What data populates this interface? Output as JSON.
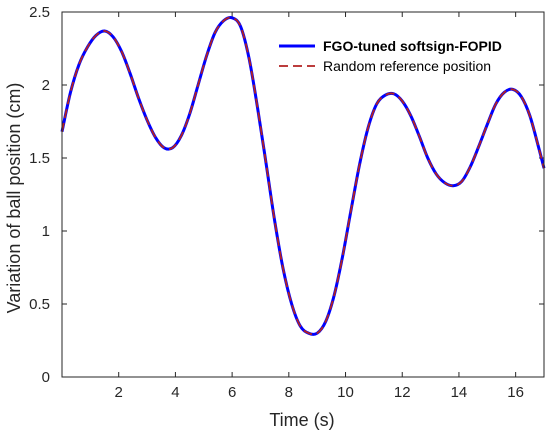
{
  "chart_data": {
    "type": "line",
    "title": "",
    "xlabel": "Time (s)",
    "ylabel": "Variation of ball position (cm)",
    "xlim": [
      0,
      17
    ],
    "ylim": [
      0,
      2.5
    ],
    "xticks": [
      2,
      4,
      6,
      8,
      10,
      12,
      14,
      16
    ],
    "yticks": [
      0,
      0.5,
      1,
      1.5,
      2,
      2.5
    ],
    "grid": false,
    "legend_position": "top-right",
    "series": [
      {
        "name": "FGO-tuned softsign-FOPID",
        "color": "#0000ff",
        "style": "solid",
        "x": [
          0,
          0.3,
          0.6,
          0.9,
          1.2,
          1.5,
          1.8,
          2.1,
          2.4,
          2.7,
          3.0,
          3.3,
          3.6,
          3.9,
          4.2,
          4.5,
          4.8,
          5.1,
          5.4,
          5.7,
          6.0,
          6.3,
          6.6,
          6.9,
          7.2,
          7.5,
          7.8,
          8.1,
          8.4,
          8.7,
          9.0,
          9.3,
          9.6,
          9.9,
          10.2,
          10.5,
          10.8,
          11.1,
          11.4,
          11.7,
          12.0,
          12.3,
          12.6,
          12.9,
          13.2,
          13.5,
          13.8,
          14.1,
          14.4,
          14.7,
          15.0,
          15.3,
          15.6,
          15.9,
          16.2,
          16.5,
          16.8,
          17.0
        ],
        "y": [
          1.68,
          1.95,
          2.14,
          2.26,
          2.34,
          2.37,
          2.33,
          2.23,
          2.08,
          1.91,
          1.76,
          1.64,
          1.57,
          1.57,
          1.65,
          1.8,
          2.0,
          2.2,
          2.36,
          2.44,
          2.46,
          2.4,
          2.18,
          1.84,
          1.46,
          1.07,
          0.74,
          0.5,
          0.35,
          0.3,
          0.3,
          0.38,
          0.56,
          0.83,
          1.15,
          1.46,
          1.71,
          1.87,
          1.93,
          1.94,
          1.89,
          1.79,
          1.65,
          1.5,
          1.39,
          1.33,
          1.31,
          1.34,
          1.44,
          1.58,
          1.73,
          1.87,
          1.95,
          1.97,
          1.92,
          1.79,
          1.58,
          1.43
        ]
      },
      {
        "name": "Random reference position",
        "color": "#b22222",
        "style": "dashed",
        "x": [
          0,
          0.3,
          0.6,
          0.9,
          1.2,
          1.5,
          1.8,
          2.1,
          2.4,
          2.7,
          3.0,
          3.3,
          3.6,
          3.9,
          4.2,
          4.5,
          4.8,
          5.1,
          5.4,
          5.7,
          6.0,
          6.3,
          6.6,
          6.9,
          7.2,
          7.5,
          7.8,
          8.1,
          8.4,
          8.7,
          9.0,
          9.3,
          9.6,
          9.9,
          10.2,
          10.5,
          10.8,
          11.1,
          11.4,
          11.7,
          12.0,
          12.3,
          12.6,
          12.9,
          13.2,
          13.5,
          13.8,
          14.1,
          14.4,
          14.7,
          15.0,
          15.3,
          15.6,
          15.9,
          16.2,
          16.5,
          16.8,
          17.0
        ],
        "y": [
          1.68,
          1.95,
          2.14,
          2.26,
          2.34,
          2.37,
          2.33,
          2.23,
          2.08,
          1.91,
          1.76,
          1.64,
          1.57,
          1.57,
          1.65,
          1.8,
          2.0,
          2.2,
          2.36,
          2.44,
          2.46,
          2.4,
          2.18,
          1.84,
          1.46,
          1.07,
          0.74,
          0.5,
          0.35,
          0.3,
          0.3,
          0.38,
          0.56,
          0.83,
          1.15,
          1.46,
          1.71,
          1.87,
          1.93,
          1.94,
          1.89,
          1.79,
          1.65,
          1.5,
          1.39,
          1.33,
          1.31,
          1.34,
          1.44,
          1.58,
          1.73,
          1.87,
          1.95,
          1.97,
          1.92,
          1.79,
          1.58,
          1.43
        ]
      }
    ]
  }
}
